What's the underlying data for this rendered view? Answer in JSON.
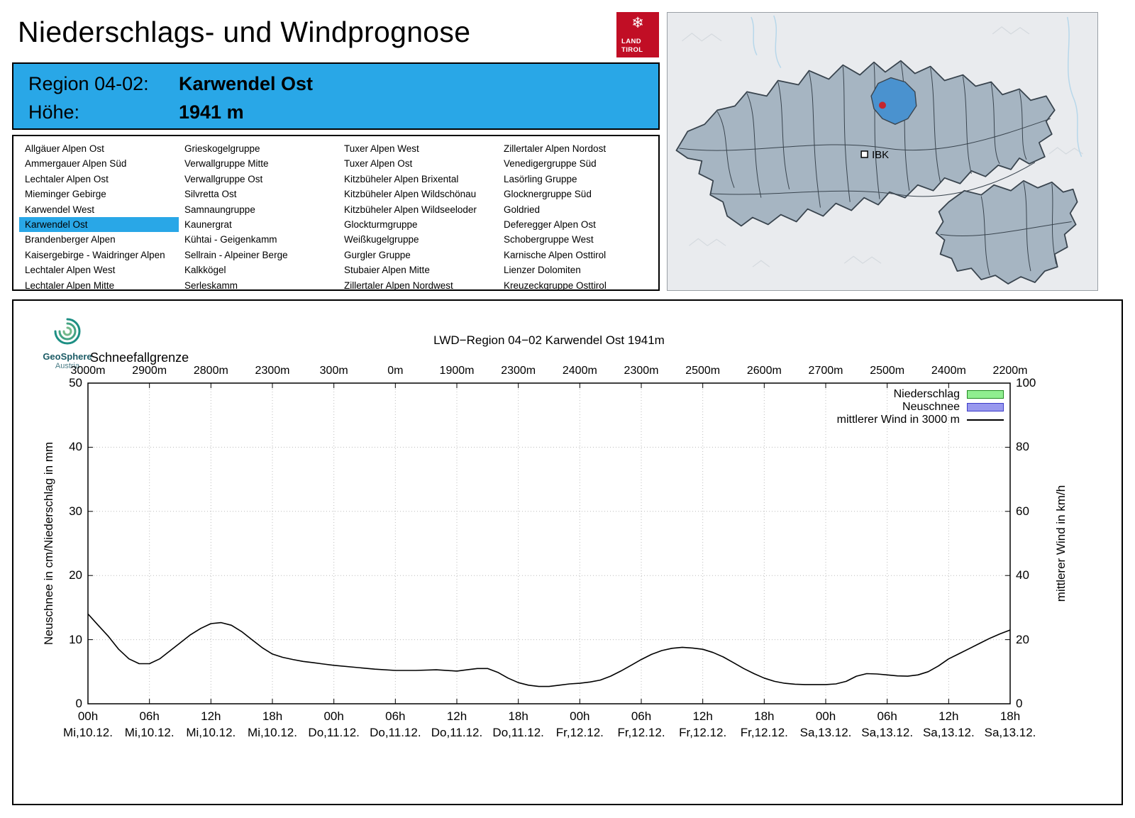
{
  "page": {
    "title": "Niederschlags- und Windprognose"
  },
  "logo": {
    "line1": "LAND",
    "line2": "TIROL",
    "color": "#c10e25",
    "icon": "snowflake"
  },
  "region_info": {
    "region_label": "Region 04-02:",
    "region_name": "Karwendel Ost",
    "altitude_label": "Höhe:",
    "altitude_value": "1941 m",
    "accent_color": "#29a7e7"
  },
  "region_list": {
    "selected": "Karwendel Ost",
    "columns": [
      [
        "Allgäuer Alpen Ost",
        "Ammergauer Alpen Süd",
        "Lechtaler Alpen Ost",
        "Mieminger Gebirge",
        "Karwendel West",
        "Karwendel Ost",
        "Brandenberger Alpen",
        "Kaisergebirge - Waidringer Alpen",
        "Lechtaler Alpen West",
        "Lechtaler Alpen Mitte"
      ],
      [
        "Grieskogelgruppe",
        "Verwallgruppe Mitte",
        "Verwallgruppe Ost",
        "Silvretta Ost",
        "Samnaungruppe",
        "Kaunergrat",
        "Kühtai - Geigenkamm",
        "Sellrain - Alpeiner Berge",
        "Kalkkögel",
        "Serleskamm"
      ],
      [
        "Tuxer Alpen West",
        "Tuxer Alpen Ost",
        "Kitzbüheler Alpen Brixental",
        "Kitzbüheler Alpen Wildschönau",
        "Kitzbüheler Alpen Wildseeloder",
        "Glockturmgruppe",
        "Weißkugelgruppe",
        "Gurgler Gruppe",
        "Stubaier Alpen Mitte",
        "Zillertaler Alpen Nordwest"
      ],
      [
        "Zillertaler Alpen Nordost",
        "Venedigergruppe Süd",
        "Lasörling Gruppe",
        "Glocknergruppe Süd",
        "Goldried",
        "Deferegger Alpen Ost",
        "Schobergruppe West",
        "Karnische Alpen Osttirol",
        "Lienzer Dolomiten",
        "Kreuzeckgruppe Osttirol"
      ]
    ]
  },
  "map": {
    "marker_label": "IBK",
    "region_fill": "#a6b5c2",
    "selected_fill": "#4a92cf",
    "dot_color": "#c4262e"
  },
  "branding": {
    "name": "GeoSphere",
    "sub": "Austria"
  },
  "chart_data": {
    "type": "line",
    "title": "LWD−Region 04−02 Karwendel Ost 1941m",
    "snowline": {
      "label": "Schneefallgrenze",
      "values": [
        "3000m",
        "2900m",
        "2800m",
        "2300m",
        "300m",
        "0m",
        "1900m",
        "2300m",
        "2400m",
        "2300m",
        "2500m",
        "2600m",
        "2700m",
        "2500m",
        "2400m",
        "2200m"
      ]
    },
    "axes": {
      "left_label": "Neuschnee in cm/Niederschlag in mm",
      "right_label": "mittlerer Wind in km/h",
      "left_range": [
        0,
        50
      ],
      "right_range": [
        0,
        100
      ],
      "left_ticks": [
        0,
        10,
        20,
        30,
        40,
        50
      ],
      "right_ticks": [
        0,
        20,
        40,
        60,
        80,
        100
      ],
      "x_range_hours": [
        0,
        90
      ],
      "grid": true
    },
    "x_ticks": [
      {
        "hour": "00h",
        "day": "Mi,10.12."
      },
      {
        "hour": "06h",
        "day": "Mi,10.12."
      },
      {
        "hour": "12h",
        "day": "Mi,10.12."
      },
      {
        "hour": "18h",
        "day": "Mi,10.12."
      },
      {
        "hour": "00h",
        "day": "Do,11.12."
      },
      {
        "hour": "06h",
        "day": "Do,11.12."
      },
      {
        "hour": "12h",
        "day": "Do,11.12."
      },
      {
        "hour": "18h",
        "day": "Do,11.12."
      },
      {
        "hour": "00h",
        "day": "Fr,12.12."
      },
      {
        "hour": "06h",
        "day": "Fr,12.12."
      },
      {
        "hour": "12h",
        "day": "Fr,12.12."
      },
      {
        "hour": "18h",
        "day": "Fr,12.12."
      },
      {
        "hour": "00h",
        "day": "Sa,13.12."
      },
      {
        "hour": "06h",
        "day": "Sa,13.12."
      },
      {
        "hour": "12h",
        "day": "Sa,13.12."
      },
      {
        "hour": "18h",
        "day": "Sa,13.12."
      }
    ],
    "legend": [
      {
        "label": "Niederschlag",
        "swatch": "box",
        "fill": "#90ee90",
        "stroke": "#228b22"
      },
      {
        "label": "Neuschnee",
        "swatch": "box",
        "fill": "#9898ee",
        "stroke": "#3c3cc8"
      },
      {
        "label": "mittlerer Wind in 3000 m",
        "swatch": "line",
        "stroke": "#000000"
      }
    ],
    "series": [
      {
        "name": "Niederschlag",
        "axis": "left",
        "unit": "mm",
        "points": []
      },
      {
        "name": "Neuschnee",
        "axis": "left",
        "unit": "cm",
        "points": []
      },
      {
        "name": "mittlerer Wind in 3000 m",
        "axis": "right",
        "unit": "km/h",
        "points": [
          [
            0,
            28
          ],
          [
            1,
            24.5
          ],
          [
            2,
            21
          ],
          [
            3,
            17
          ],
          [
            4,
            14
          ],
          [
            5,
            12.5
          ],
          [
            6,
            12.5
          ],
          [
            7,
            14
          ],
          [
            8,
            16.5
          ],
          [
            9,
            19
          ],
          [
            10,
            21.5
          ],
          [
            11,
            23.5
          ],
          [
            12,
            25
          ],
          [
            13,
            25.3
          ],
          [
            14,
            24.5
          ],
          [
            15,
            22.5
          ],
          [
            16,
            20
          ],
          [
            17,
            17.5
          ],
          [
            18,
            15.5
          ],
          [
            19,
            14.5
          ],
          [
            20,
            13.8
          ],
          [
            21,
            13.2
          ],
          [
            22,
            12.8
          ],
          [
            23,
            12.4
          ],
          [
            24,
            12
          ],
          [
            26,
            11.4
          ],
          [
            28,
            10.8
          ],
          [
            30,
            10.4
          ],
          [
            32,
            10.4
          ],
          [
            34,
            10.6
          ],
          [
            36,
            10.2
          ],
          [
            37,
            10.6
          ],
          [
            38,
            11
          ],
          [
            39,
            11
          ],
          [
            40,
            9.8
          ],
          [
            41,
            8
          ],
          [
            42,
            6.6
          ],
          [
            43,
            5.8
          ],
          [
            44,
            5.4
          ],
          [
            45,
            5.4
          ],
          [
            46,
            5.8
          ],
          [
            47,
            6.2
          ],
          [
            48,
            6.4
          ],
          [
            49,
            6.8
          ],
          [
            50,
            7.4
          ],
          [
            51,
            8.6
          ],
          [
            52,
            10.2
          ],
          [
            53,
            12
          ],
          [
            54,
            13.8
          ],
          [
            55,
            15.4
          ],
          [
            56,
            16.6
          ],
          [
            57,
            17.3
          ],
          [
            58,
            17.6
          ],
          [
            59,
            17.4
          ],
          [
            60,
            17
          ],
          [
            61,
            16
          ],
          [
            62,
            14.6
          ],
          [
            63,
            12.8
          ],
          [
            64,
            11
          ],
          [
            65,
            9.4
          ],
          [
            66,
            8
          ],
          [
            67,
            7
          ],
          [
            68,
            6.4
          ],
          [
            69,
            6.1
          ],
          [
            70,
            6
          ],
          [
            71,
            6
          ],
          [
            72,
            6
          ],
          [
            73,
            6.2
          ],
          [
            74,
            7
          ],
          [
            75,
            8.6
          ],
          [
            76,
            9.4
          ],
          [
            77,
            9.3
          ],
          [
            78,
            9
          ],
          [
            79,
            8.7
          ],
          [
            80,
            8.6
          ],
          [
            81,
            9
          ],
          [
            82,
            10
          ],
          [
            83,
            11.8
          ],
          [
            84,
            14
          ],
          [
            85,
            15.6
          ],
          [
            86,
            17.2
          ],
          [
            87,
            18.8
          ],
          [
            88,
            20.4
          ],
          [
            89,
            21.8
          ],
          [
            90,
            23
          ]
        ]
      }
    ]
  }
}
